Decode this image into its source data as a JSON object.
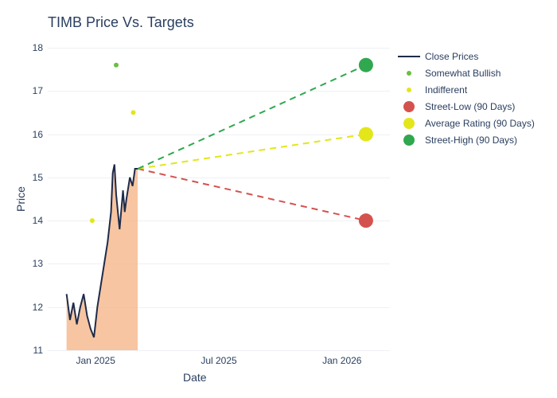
{
  "chart": {
    "type": "line+area+scatter",
    "title": "TIMB Price Vs. Targets",
    "title_fontsize": 18,
    "title_color": "#2a3f5f",
    "background_color": "#ffffff",
    "plot_background": "#ffffff",
    "grid_color": "#eef0f4",
    "text_color": "#2a3f5f",
    "xlabel": "Date",
    "ylabel": "Price",
    "label_fontsize": 14,
    "tick_fontsize": 12,
    "ylim": [
      11,
      18
    ],
    "ytick_step": 1,
    "yticks": [
      11,
      12,
      13,
      14,
      15,
      16,
      17,
      18
    ],
    "xticks": [
      {
        "label": "Jan 2025",
        "t": 0.14
      },
      {
        "label": "Jul 2025",
        "t": 0.5
      },
      {
        "label": "Jan 2026",
        "t": 0.86
      }
    ],
    "close_series": {
      "label": "Close Prices",
      "line_color": "#1f2b4a",
      "line_width": 2,
      "fill_color": "#f5b78a",
      "fill_opacity": 0.8,
      "data": [
        {
          "t": 0.055,
          "v": 12.3
        },
        {
          "t": 0.065,
          "v": 11.7
        },
        {
          "t": 0.075,
          "v": 12.1
        },
        {
          "t": 0.085,
          "v": 11.6
        },
        {
          "t": 0.095,
          "v": 12.0
        },
        {
          "t": 0.105,
          "v": 12.3
        },
        {
          "t": 0.115,
          "v": 11.8
        },
        {
          "t": 0.125,
          "v": 11.5
        },
        {
          "t": 0.135,
          "v": 11.3
        },
        {
          "t": 0.145,
          "v": 12.0
        },
        {
          "t": 0.155,
          "v": 12.5
        },
        {
          "t": 0.165,
          "v": 13.0
        },
        {
          "t": 0.175,
          "v": 13.5
        },
        {
          "t": 0.185,
          "v": 14.2
        },
        {
          "t": 0.19,
          "v": 15.1
        },
        {
          "t": 0.195,
          "v": 15.3
        },
        {
          "t": 0.2,
          "v": 14.6
        },
        {
          "t": 0.21,
          "v": 13.8
        },
        {
          "t": 0.22,
          "v": 14.7
        },
        {
          "t": 0.225,
          "v": 14.2
        },
        {
          "t": 0.23,
          "v": 14.5
        },
        {
          "t": 0.24,
          "v": 15.0
        },
        {
          "t": 0.248,
          "v": 14.8
        },
        {
          "t": 0.255,
          "v": 15.2
        },
        {
          "t": 0.263,
          "v": 15.2
        }
      ]
    },
    "rating_points": [
      {
        "label": "Indifferent",
        "t": 0.13,
        "v": 14.0,
        "color": "#e3e619",
        "size": 6
      },
      {
        "label": "Somewhat Bullish",
        "t": 0.2,
        "v": 17.6,
        "color": "#6bbf3f",
        "size": 6
      },
      {
        "label": "Indifferent",
        "t": 0.25,
        "v": 16.5,
        "color": "#e3e619",
        "size": 6
      }
    ],
    "projections": [
      {
        "label": "Street-Low (90 Days)",
        "end_t": 0.93,
        "end_v": 14.0,
        "color": "#d4524e",
        "dash": "8,6",
        "line_width": 2,
        "dot_size": 18
      },
      {
        "label": "Average Rating (90 Days)",
        "end_t": 0.93,
        "end_v": 16.0,
        "color": "#e3e619",
        "dash": "8,6",
        "line_width": 2,
        "dot_size": 18
      },
      {
        "label": "Street-High (90 Days)",
        "end_t": 0.93,
        "end_v": 17.6,
        "color": "#2fa84f",
        "dash": "8,6",
        "line_width": 2,
        "dot_size": 18
      }
    ],
    "projection_start": {
      "t": 0.263,
      "v": 15.2
    },
    "legend": {
      "items": [
        {
          "type": "line",
          "color": "#1f2b4a",
          "label": "Close Prices"
        },
        {
          "type": "dot-small",
          "color": "#6bbf3f",
          "label": "Somewhat Bullish"
        },
        {
          "type": "dot-small",
          "color": "#e3e619",
          "label": "Indifferent"
        },
        {
          "type": "dot-big",
          "color": "#d4524e",
          "label": "Street-Low (90 Days)"
        },
        {
          "type": "dot-big",
          "color": "#e3e619",
          "label": "Average Rating (90 Days)"
        },
        {
          "type": "dot-big",
          "color": "#2fa84f",
          "label": "Street-High (90 Days)"
        }
      ]
    }
  }
}
